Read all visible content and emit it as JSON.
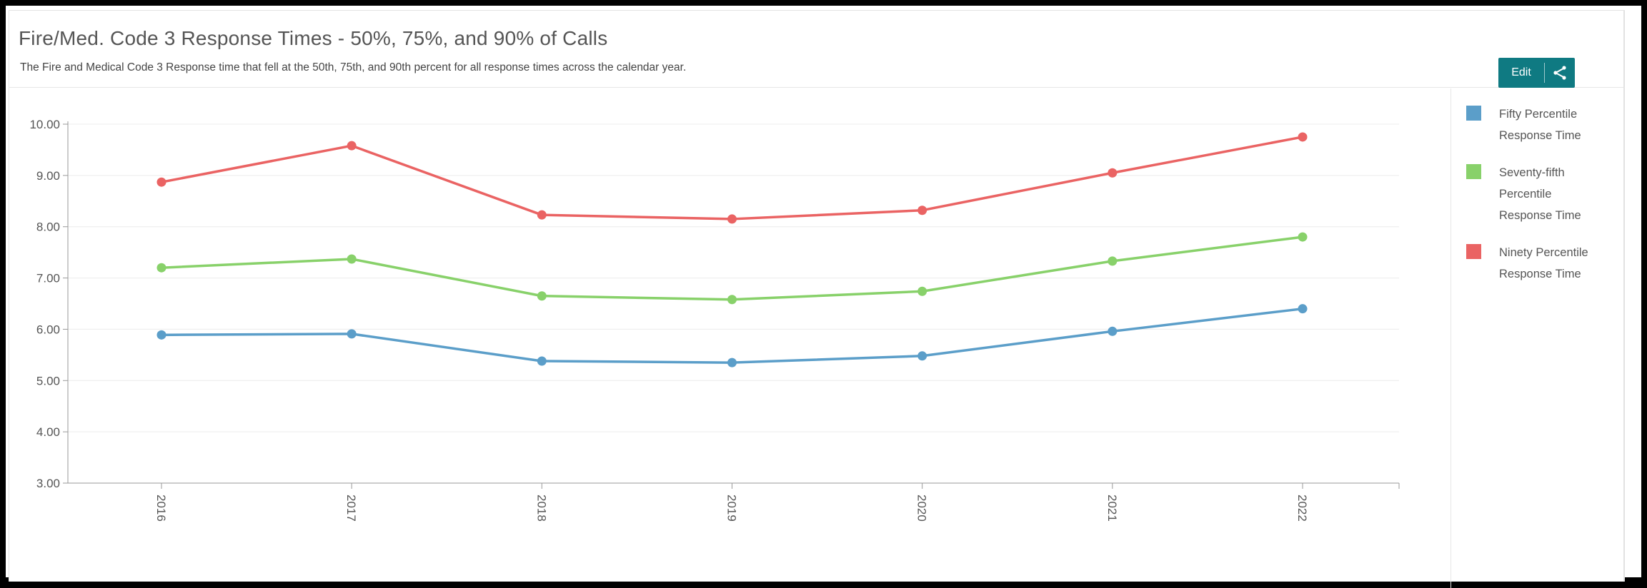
{
  "header": {
    "title": "Fire/Med. Code 3 Response Times - 50%, 75%, and 90% of Calls",
    "subtitle": "The Fire and Medical Code 3 Response time that fell at the 50th, 75th, and 90th percent for all response times across the calendar year."
  },
  "toolbar": {
    "edit_label": "Edit",
    "share_icon": "share-icon",
    "button_color": "#0f7a82"
  },
  "chart_data": {
    "type": "line",
    "x": [
      "2016",
      "2017",
      "2018",
      "2019",
      "2020",
      "2021",
      "2022"
    ],
    "ylim": [
      3,
      10
    ],
    "yticks": [
      "3.00",
      "4.00",
      "5.00",
      "6.00",
      "7.00",
      "8.00",
      "9.00",
      "10.00"
    ],
    "grid": true,
    "legend_position": "right",
    "series": [
      {
        "name": "Fifty Percentile Response Time",
        "color": "#5b9ec9",
        "values": [
          5.89,
          5.91,
          5.38,
          5.35,
          5.48,
          5.96,
          6.4
        ]
      },
      {
        "name": "Seventy-fifth Percentile Response Time",
        "color": "#88d16a",
        "values": [
          7.2,
          7.37,
          6.65,
          6.58,
          6.74,
          7.33,
          7.8
        ]
      },
      {
        "name": "Ninety Percentile Response Time",
        "color": "#ea6363",
        "values": [
          8.87,
          9.58,
          8.23,
          8.15,
          8.32,
          9.05,
          9.75
        ]
      }
    ]
  },
  "legend": {
    "items": [
      {
        "lines": [
          "Fifty Percentile",
          "Response Time"
        ],
        "color": "#5b9ec9"
      },
      {
        "lines": [
          "Seventy-fifth",
          "Percentile",
          "Response Time"
        ],
        "color": "#88d16a"
      },
      {
        "lines": [
          "Ninety Percentile",
          "Response Time"
        ],
        "color": "#ea6363"
      }
    ]
  }
}
